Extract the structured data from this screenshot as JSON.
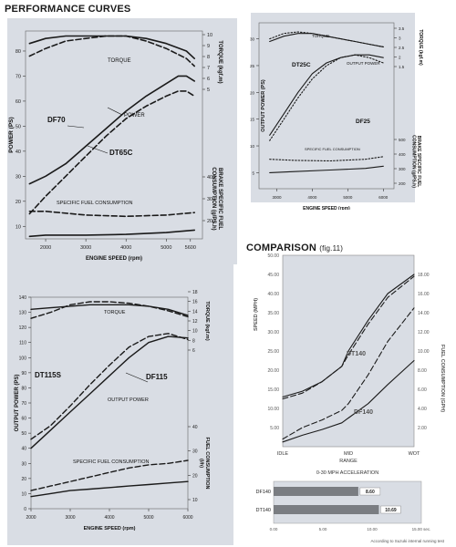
{
  "page": {
    "heading": "PERFORMANCE CURVES",
    "comparison_heading": "COMPARISON",
    "comparison_fig": "(fig.11)"
  },
  "chart_data": [
    {
      "id": "df70",
      "type": "line",
      "xlabel": "ENGINE SPEED (rpm)",
      "ylabel": "POWER (PS)",
      "y2label": "TORQUE (kgf.m)",
      "y3label": "BRAKE SPECIFIC FUEL CONSUMPTION (g/PS.h)",
      "xticks": [
        2000,
        3000,
        4000,
        5000,
        5600
      ],
      "xlim": [
        1500,
        5900
      ],
      "yticks": [
        10,
        20,
        30,
        40,
        50,
        60,
        70,
        80
      ],
      "ylim": [
        5,
        88
      ],
      "y2ticks": [
        5,
        6,
        7,
        8,
        9,
        10
      ],
      "y3ticks": [
        200,
        300,
        400
      ],
      "annotations": [
        "TORQUE",
        "POWER",
        "DF70",
        "DT65C",
        "SPECIFIC FUEL CONSUMPTION"
      ],
      "series": [
        {
          "name": "DF70",
          "style": "solid",
          "x": [
            1600,
            2000,
            2500,
            3000,
            3500,
            4000,
            4500,
            5000,
            5300,
            5500,
            5700
          ],
          "y": [
            27,
            30,
            35,
            42,
            49,
            56,
            62,
            67,
            70,
            70,
            68
          ]
        },
        {
          "name": "DT65C",
          "style": "dashed",
          "x": [
            1600,
            2000,
            2500,
            3000,
            3500,
            4000,
            4500,
            5000,
            5300,
            5500,
            5700
          ],
          "y": [
            15,
            22,
            30,
            38,
            46,
            53,
            58,
            62,
            64,
            64,
            62
          ]
        },
        {
          "name": "DF70 torque",
          "style": "solid",
          "x": [
            1600,
            2000,
            2500,
            3000,
            3500,
            4000,
            4500,
            5000,
            5500,
            5700
          ],
          "y": [
            83,
            85,
            86,
            86,
            86,
            86,
            85,
            83,
            80,
            77
          ]
        },
        {
          "name": "DT65C torque",
          "style": "dashed",
          "x": [
            1600,
            2000,
            2500,
            3000,
            3500,
            4000,
            4500,
            5000,
            5500,
            5700
          ],
          "y": [
            78,
            81,
            84,
            85,
            86,
            86,
            84,
            81,
            77,
            74
          ]
        },
        {
          "name": "DF70 fuel",
          "style": "solid",
          "x": [
            1600,
            2000,
            3000,
            4000,
            5000,
            5700
          ],
          "y": [
            6,
            6.5,
            6.5,
            6.8,
            7.5,
            8.5
          ]
        },
        {
          "name": "DT65C fuel",
          "style": "dashed",
          "x": [
            1600,
            2000,
            3000,
            4000,
            5000,
            5700
          ],
          "y": [
            16,
            16,
            14.5,
            14,
            14.5,
            15.5
          ]
        }
      ]
    },
    {
      "id": "df25",
      "type": "line",
      "xlabel": "ENGINE SPEED (rpm)",
      "ylabel": "OUTPUT POWER (PS)",
      "y2label": "TORQUE (kgf.m)",
      "y3label": "BRAKE SPECIFIC FUEL CONSUMPTION (g/PS.h)",
      "xticks": [
        3000,
        4000,
        5000,
        6000
      ],
      "xlim": [
        2500,
        6300
      ],
      "yticks": [
        5,
        10,
        15,
        20,
        25,
        30
      ],
      "ylim": [
        2,
        33
      ],
      "y2ticks": [
        1.5,
        2.0,
        2.5,
        3.0,
        3.5
      ],
      "y3ticks": [
        200,
        300,
        400,
        500
      ],
      "annotations": [
        "TORQUE",
        "OUTPUT POWER",
        "DT25C",
        "DF25",
        "SPECIFIC FUEL CONSUMPTION"
      ],
      "series": [
        {
          "name": "DF25",
          "style": "solid",
          "x": [
            2800,
            3200,
            3600,
            4000,
            4400,
            4800,
            5200,
            5600,
            6000
          ],
          "y": [
            12,
            16,
            20,
            23.5,
            25.5,
            26.5,
            27,
            27,
            26.5
          ]
        },
        {
          "name": "DT25C",
          "style": "dotted",
          "x": [
            2800,
            3200,
            3600,
            4000,
            4400,
            4800,
            5200,
            5600,
            6000
          ],
          "y": [
            11,
            15,
            19,
            22.5,
            25,
            26.5,
            27,
            26.5,
            25.5
          ]
        },
        {
          "name": "DF25 torque",
          "style": "solid",
          "x": [
            2800,
            3200,
            3600,
            4000,
            4400,
            4800,
            5200,
            5600,
            6000
          ],
          "y": [
            29.5,
            30.5,
            31,
            31,
            30.5,
            30,
            29.5,
            29,
            28.5
          ]
        },
        {
          "name": "DT25C torque",
          "style": "dotted",
          "x": [
            2800,
            3200,
            3600,
            4000,
            4400,
            4800,
            5200,
            5600,
            6000
          ],
          "y": [
            30,
            31,
            31.3,
            31,
            30.5,
            30,
            29.5,
            29,
            28.5
          ]
        },
        {
          "name": "DF25 fuel",
          "style": "solid",
          "x": [
            2800,
            3500,
            4500,
            5500,
            6000
          ],
          "y": [
            5,
            5.2,
            5.5,
            5.8,
            6.2
          ]
        },
        {
          "name": "DT25C fuel",
          "style": "dotted",
          "x": [
            2800,
            3500,
            4500,
            5500,
            6000
          ],
          "y": [
            7.5,
            7.3,
            7.2,
            7.5,
            8
          ]
        }
      ]
    },
    {
      "id": "df115",
      "type": "line",
      "xlabel": "ENGINE SPEED (rpm)",
      "ylabel": "OUTPUT POWER (PS)",
      "y2label": "TORQUE (kgf.m)",
      "y3label": "FUEL CONSUMPTION (l/h)",
      "xticks": [
        2000,
        3000,
        4000,
        5000,
        6000
      ],
      "xlim": [
        2000,
        6000
      ],
      "yticks": [
        0,
        10,
        20,
        30,
        40,
        50,
        60,
        70,
        80,
        90,
        100,
        110,
        120,
        130,
        140
      ],
      "ylim": [
        0,
        140
      ],
      "y2ticks": [
        6,
        8,
        10,
        12,
        14,
        16,
        18
      ],
      "y3ticks": [
        10,
        20,
        30,
        40
      ],
      "annotations": [
        "TORQUE",
        "OUTPUT POWER",
        "DT115S",
        "DF115",
        "SPECIFIC FUEL CONSUMPTION"
      ],
      "series": [
        {
          "name": "DF115",
          "style": "solid",
          "x": [
            2000,
            2500,
            3000,
            3500,
            4000,
            4500,
            5000,
            5500,
            6000
          ],
          "y": [
            40,
            52,
            64,
            76,
            88,
            100,
            110,
            114,
            113
          ]
        },
        {
          "name": "DT115S",
          "style": "dashed",
          "x": [
            2000,
            2500,
            3000,
            3500,
            4000,
            4500,
            5000,
            5500,
            6000
          ],
          "y": [
            46,
            55,
            68,
            82,
            95,
            107,
            114,
            116,
            112
          ]
        },
        {
          "name": "DF115 torque",
          "style": "solid",
          "x": [
            2000,
            2500,
            3000,
            3500,
            4000,
            4500,
            5000,
            5500,
            6000
          ],
          "y": [
            132,
            133,
            134,
            135,
            135,
            135,
            134,
            132,
            128
          ]
        },
        {
          "name": "DT115S torque",
          "style": "dashed",
          "x": [
            2000,
            2500,
            3000,
            3500,
            4000,
            4500,
            5000,
            5500,
            6000
          ],
          "y": [
            126,
            130,
            135,
            137,
            137,
            136,
            134,
            131,
            127
          ]
        },
        {
          "name": "DF115 fuel",
          "style": "solid",
          "x": [
            2000,
            2500,
            3000,
            3500,
            4000,
            4500,
            5000,
            5500,
            6000
          ],
          "y": [
            8,
            10,
            12,
            13,
            14,
            15,
            16,
            17,
            18
          ]
        },
        {
          "name": "DT115S fuel",
          "style": "dashed",
          "x": [
            2000,
            2500,
            3000,
            3500,
            4000,
            4500,
            5000,
            5500,
            6000
          ],
          "y": [
            12,
            15,
            18,
            21,
            24,
            27,
            29,
            30,
            32
          ]
        }
      ]
    },
    {
      "id": "comparison",
      "type": "line",
      "title": "COMPARISON",
      "xlabel": "RANGE",
      "ylabel": "SPEED (MPH)",
      "y2label": "FUEL CONSUMPTION (GPH)",
      "categories": [
        "IDLE",
        "MID",
        "WOT"
      ],
      "yticks": [
        5,
        10,
        15,
        20,
        25,
        30,
        35,
        40,
        45,
        50
      ],
      "yticklabels": [
        "5.00",
        "10.00",
        "15.00",
        "20.00",
        "25.00",
        "30.00",
        "35.00",
        "40.00",
        "45.00",
        "50.00"
      ],
      "ylim": [
        0,
        50
      ],
      "y2ticks": [
        2,
        4,
        6,
        8,
        10,
        12,
        14,
        16,
        18
      ],
      "y2ticklabels": [
        "2.00",
        "4.00",
        "6.00",
        "8.00",
        "10.00",
        "12.00",
        "14.00",
        "16.00",
        "18.00"
      ],
      "y2lim": [
        0,
        20
      ],
      "annotations": [
        "DT140",
        "DF140"
      ],
      "series": [
        {
          "name": "DF140 speed",
          "style": "solid",
          "x": [
            0,
            0.15,
            0.3,
            0.45,
            0.5,
            0.65,
            0.8,
            1
          ],
          "y": [
            13,
            14.5,
            17,
            21,
            25,
            33,
            40,
            45
          ]
        },
        {
          "name": "DT140 speed",
          "style": "dashed",
          "x": [
            0,
            0.15,
            0.3,
            0.45,
            0.5,
            0.65,
            0.8,
            1
          ],
          "y": [
            12.5,
            14,
            17,
            21,
            24,
            32,
            39,
            44.5
          ]
        },
        {
          "name": "DT140",
          "style": "dashed",
          "axis": "y2",
          "x": [
            0,
            0.15,
            0.3,
            0.45,
            0.5,
            0.65,
            0.8,
            1
          ],
          "y": [
            0.8,
            2,
            2.8,
            3.8,
            4.5,
            7.5,
            11,
            14.5
          ]
        },
        {
          "name": "DF140",
          "style": "solid",
          "axis": "y2",
          "x": [
            0,
            0.15,
            0.3,
            0.45,
            0.5,
            0.65,
            0.8,
            1
          ],
          "y": [
            0.5,
            1.2,
            1.8,
            2.5,
            3,
            4.5,
            6.5,
            9
          ]
        }
      ]
    },
    {
      "id": "acceleration",
      "type": "bar",
      "title": "0-30 MPH ACCELERATION",
      "categories": [
        "DF140",
        "DT140"
      ],
      "values": [
        8.6,
        10.69
      ],
      "value_labels": [
        "8.60",
        "10.69"
      ],
      "xticks": [
        0,
        5,
        10,
        15
      ],
      "xticklabels": [
        "0.00",
        "5.00",
        "10.00",
        "15.00 sec."
      ],
      "xlim": [
        0,
        15
      ],
      "footnote": "According to Suzuki internal running test"
    }
  ]
}
